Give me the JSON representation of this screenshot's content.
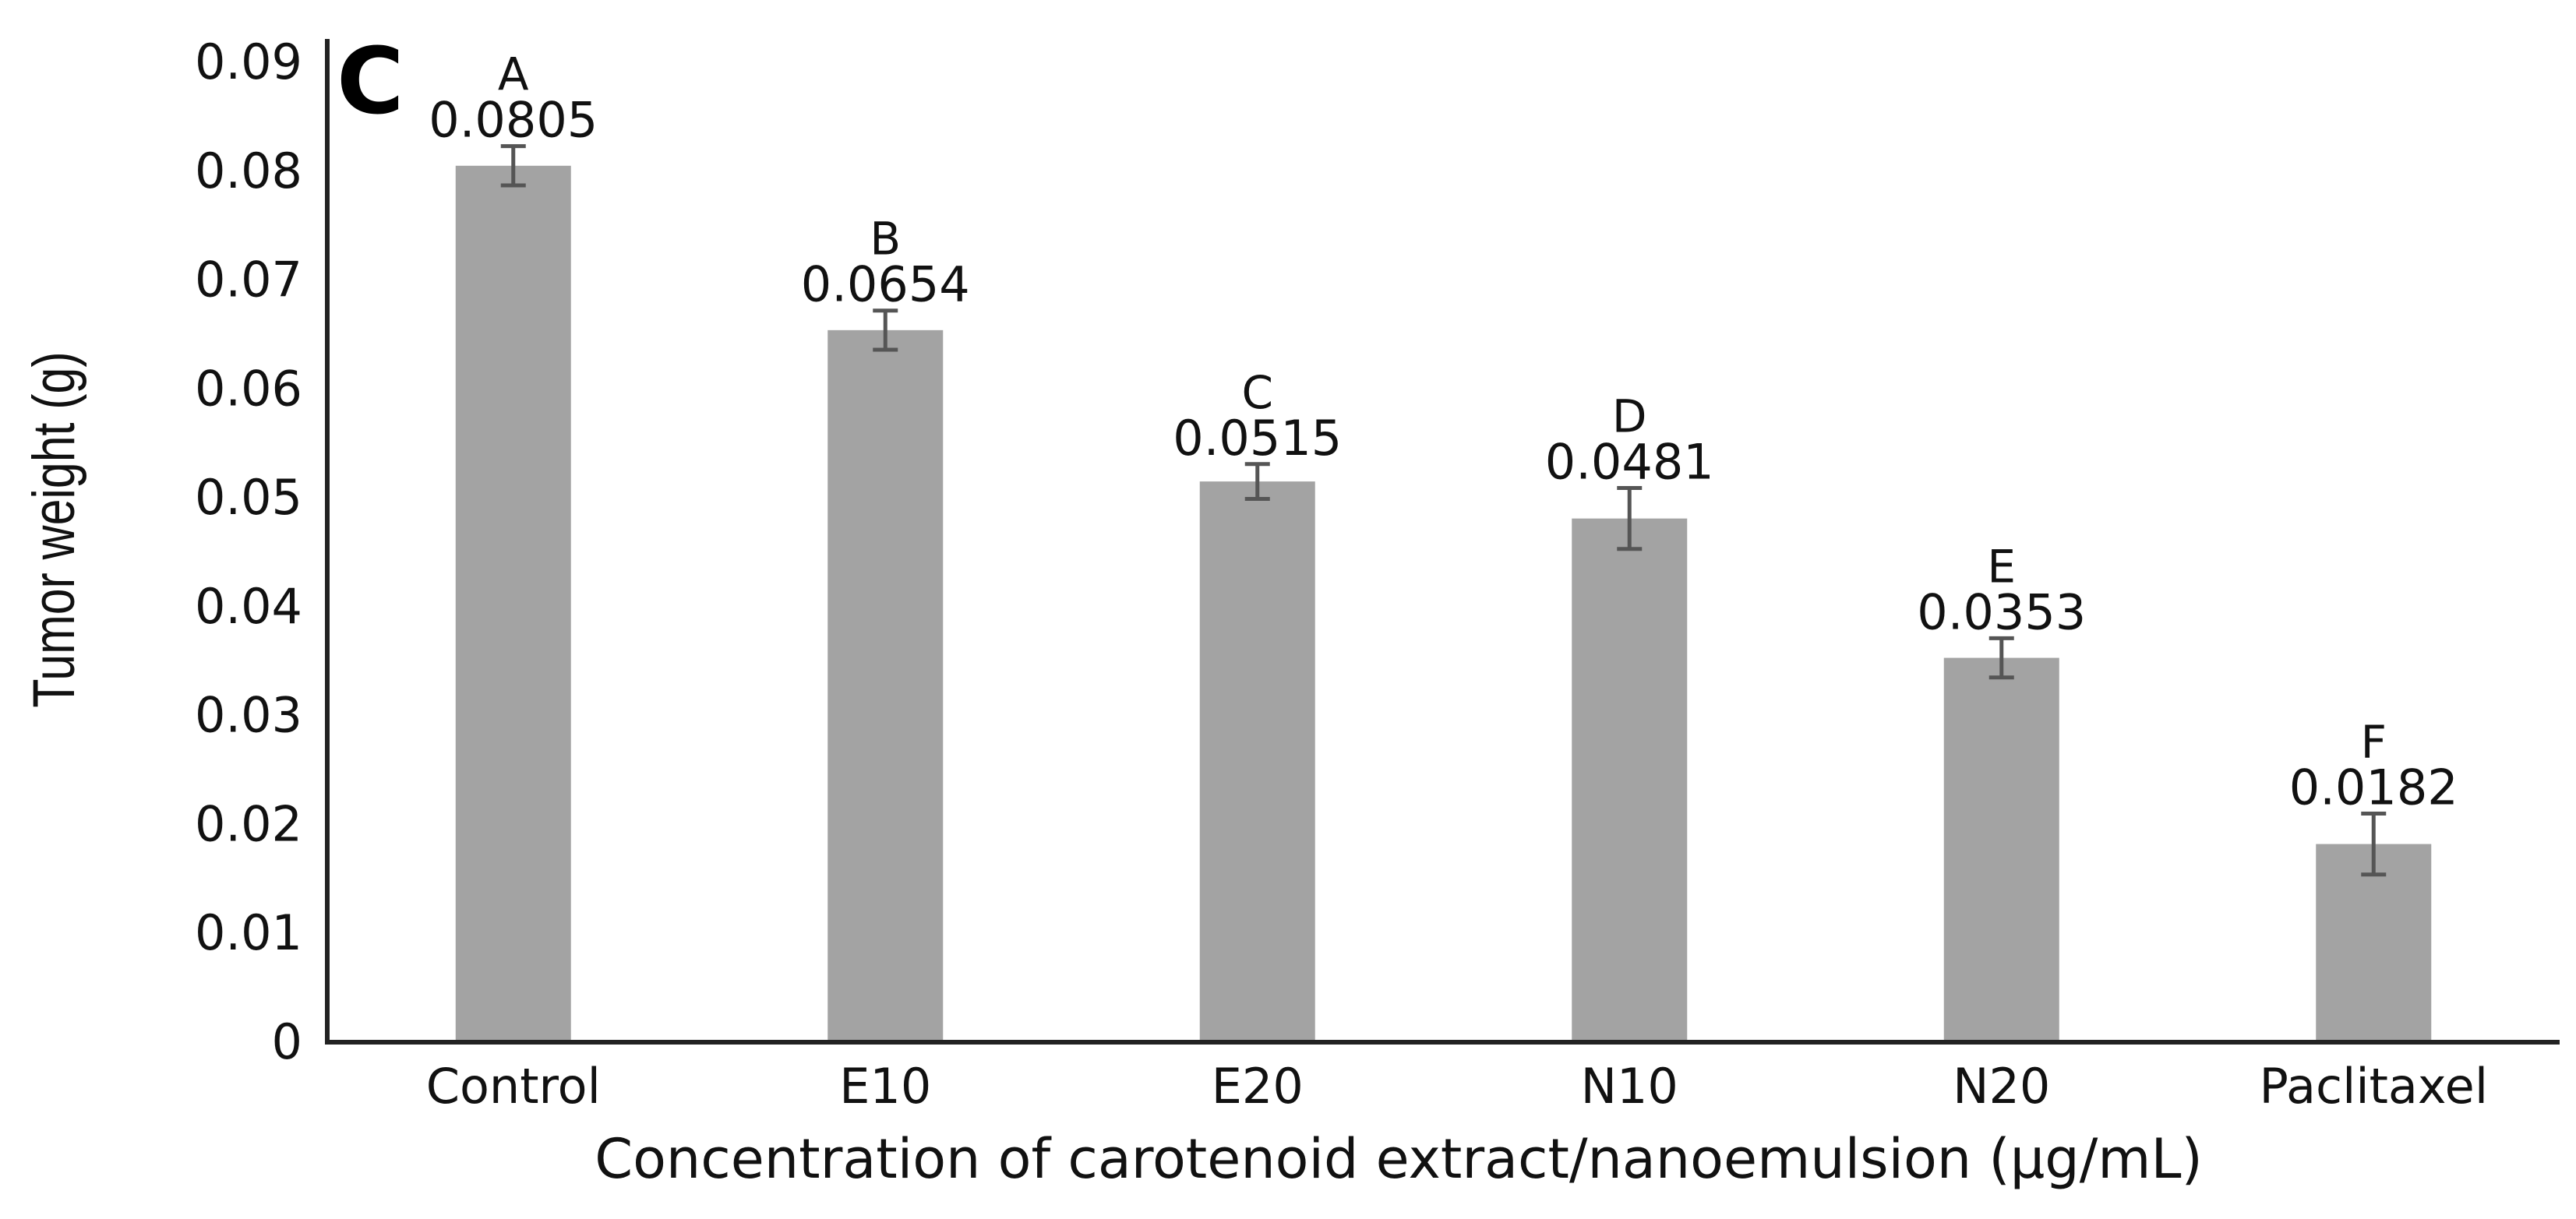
{
  "panel_label": "C",
  "chart_data": {
    "type": "bar",
    "title": "",
    "xlabel": "Concentration of carotenoid extract/nanoemulsion (μg/mL)",
    "ylabel": "Tumor weight (g)",
    "ylim": [
      0,
      0.09
    ],
    "yticks": [
      "0",
      "0.01",
      "0.02",
      "0.03",
      "0.04",
      "0.05",
      "0.06",
      "0.07",
      "0.08",
      "0.09"
    ],
    "categories": [
      "Control",
      "E10",
      "E20",
      "N10",
      "N20",
      "Paclitaxel"
    ],
    "values": [
      0.0805,
      0.0654,
      0.0515,
      0.0481,
      0.0353,
      0.0182
    ],
    "value_labels": [
      "0.0805",
      "0.0654",
      "0.0515",
      "0.0481",
      "0.0353",
      "0.0182"
    ],
    "errors": [
      0.0018,
      0.0018,
      0.0016,
      0.0028,
      0.0018,
      0.0028
    ],
    "significance_letters": [
      "A",
      "B",
      "C",
      "D",
      "E",
      "F"
    ],
    "bar_color": "#a3a3a3",
    "error_color": "#555555",
    "grid": false,
    "legend": "none"
  }
}
